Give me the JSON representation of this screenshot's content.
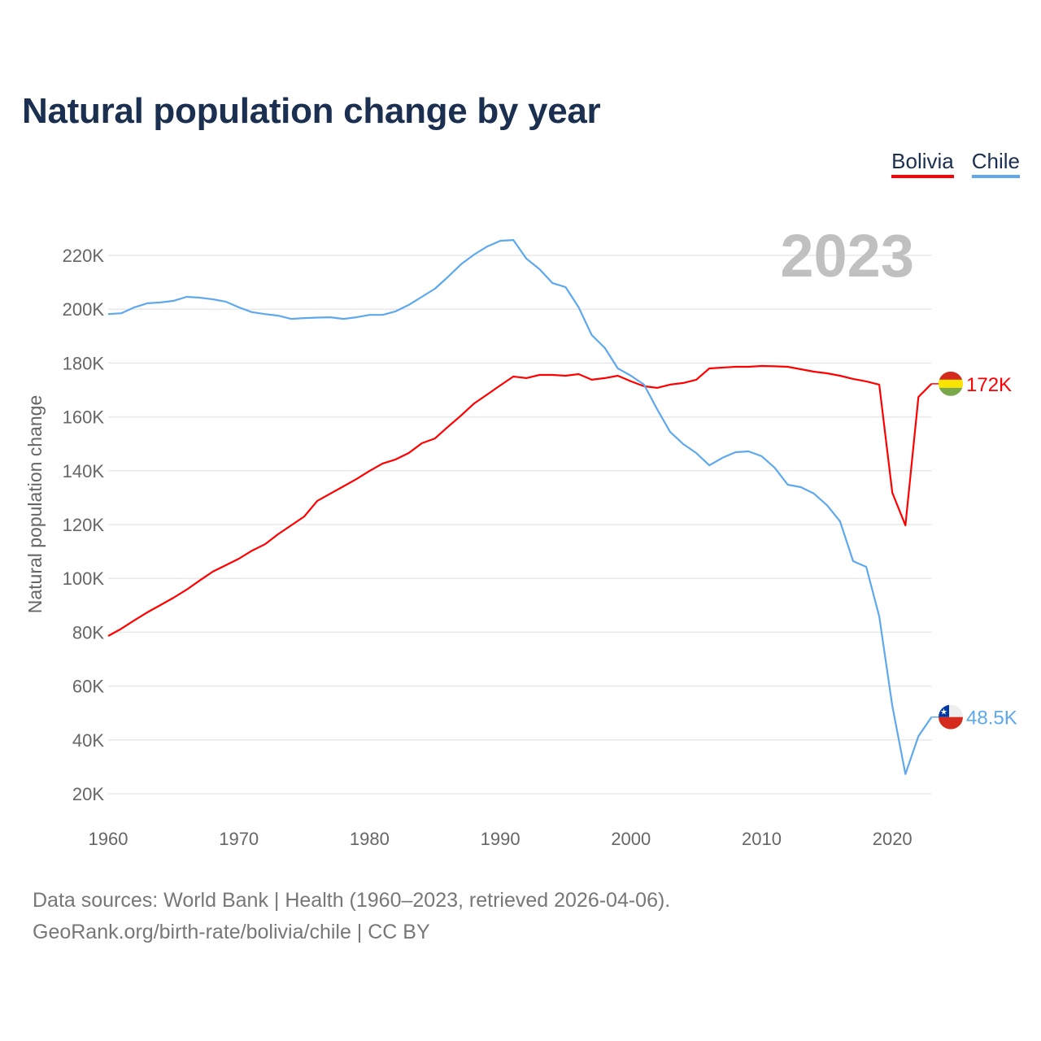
{
  "title": "Natural population change by year",
  "legend": [
    {
      "name": "Bolivia",
      "color": "#ff0000"
    },
    {
      "name": "Chile",
      "color": "#5ea8ee"
    }
  ],
  "year_label": "2023",
  "source_line1": "Data sources: World Bank | Health (1960–2023, retrieved 2026-04-06).",
  "source_line2": "GeoRank.org/birth-rate/bolivia/chile | CC BY",
  "chart_data": {
    "type": "line",
    "title": "Natural population change by year",
    "xlabel": "",
    "ylabel": "Natural population change",
    "xlim": [
      1960,
      2023
    ],
    "ylim": [
      10000,
      230000
    ],
    "yticks": [
      20000,
      40000,
      60000,
      80000,
      100000,
      120000,
      140000,
      160000,
      180000,
      200000,
      220000
    ],
    "ytick_labels": [
      "20K",
      "40K",
      "60K",
      "80K",
      "100K",
      "120K",
      "140K",
      "160K",
      "180K",
      "200K",
      "220K"
    ],
    "xticks": [
      1960,
      1970,
      1980,
      1990,
      2000,
      2010,
      2020
    ],
    "xtick_labels": [
      "1960",
      "1970",
      "1980",
      "1990",
      "2000",
      "2010",
      "2020"
    ],
    "grid": true,
    "legend_position": "top-right",
    "x_start": 1960,
    "series": [
      {
        "name": "Bolivia",
        "color": "#ff0000",
        "end_label": "172K",
        "flag": "bolivia-flag",
        "values": [
          78600,
          81300,
          84400,
          87400,
          90100,
          92800,
          95800,
          99200,
          102500,
          104900,
          107300,
          110300,
          112700,
          116400,
          119700,
          123000,
          128800,
          131500,
          134200,
          136900,
          139900,
          142700,
          144200,
          146600,
          150200,
          152000,
          156300,
          160500,
          165000,
          168300,
          171700,
          175000,
          174400,
          175600,
          175600,
          175300,
          175900,
          173800,
          174400,
          175300,
          173200,
          171400,
          170800,
          172000,
          172600,
          173800,
          178000,
          178300,
          178600,
          178600,
          178900,
          178800,
          178600,
          177700,
          176800,
          176200,
          175300,
          174100,
          173200,
          172000,
          131800,
          119700,
          167400,
          172300
        ]
      },
      {
        "name": "Chile",
        "color": "#5ea8ee",
        "end_label": "48.5K",
        "flag": "chile-flag",
        "values": [
          198200,
          198500,
          200700,
          202200,
          202500,
          203100,
          204600,
          204300,
          203700,
          202800,
          200700,
          198900,
          198200,
          197600,
          196400,
          196700,
          196900,
          197000,
          196400,
          197000,
          197900,
          197900,
          199200,
          201600,
          204600,
          207600,
          212000,
          216700,
          220300,
          223300,
          225400,
          225700,
          218800,
          214900,
          209700,
          208200,
          200700,
          190400,
          185600,
          178000,
          175300,
          172000,
          162900,
          154400,
          149900,
          146600,
          142000,
          144800,
          146900,
          147200,
          145400,
          141100,
          134800,
          133900,
          131500,
          127200,
          121200,
          106400,
          104300,
          85900,
          52600,
          27300,
          41400,
          48500
        ]
      }
    ]
  }
}
